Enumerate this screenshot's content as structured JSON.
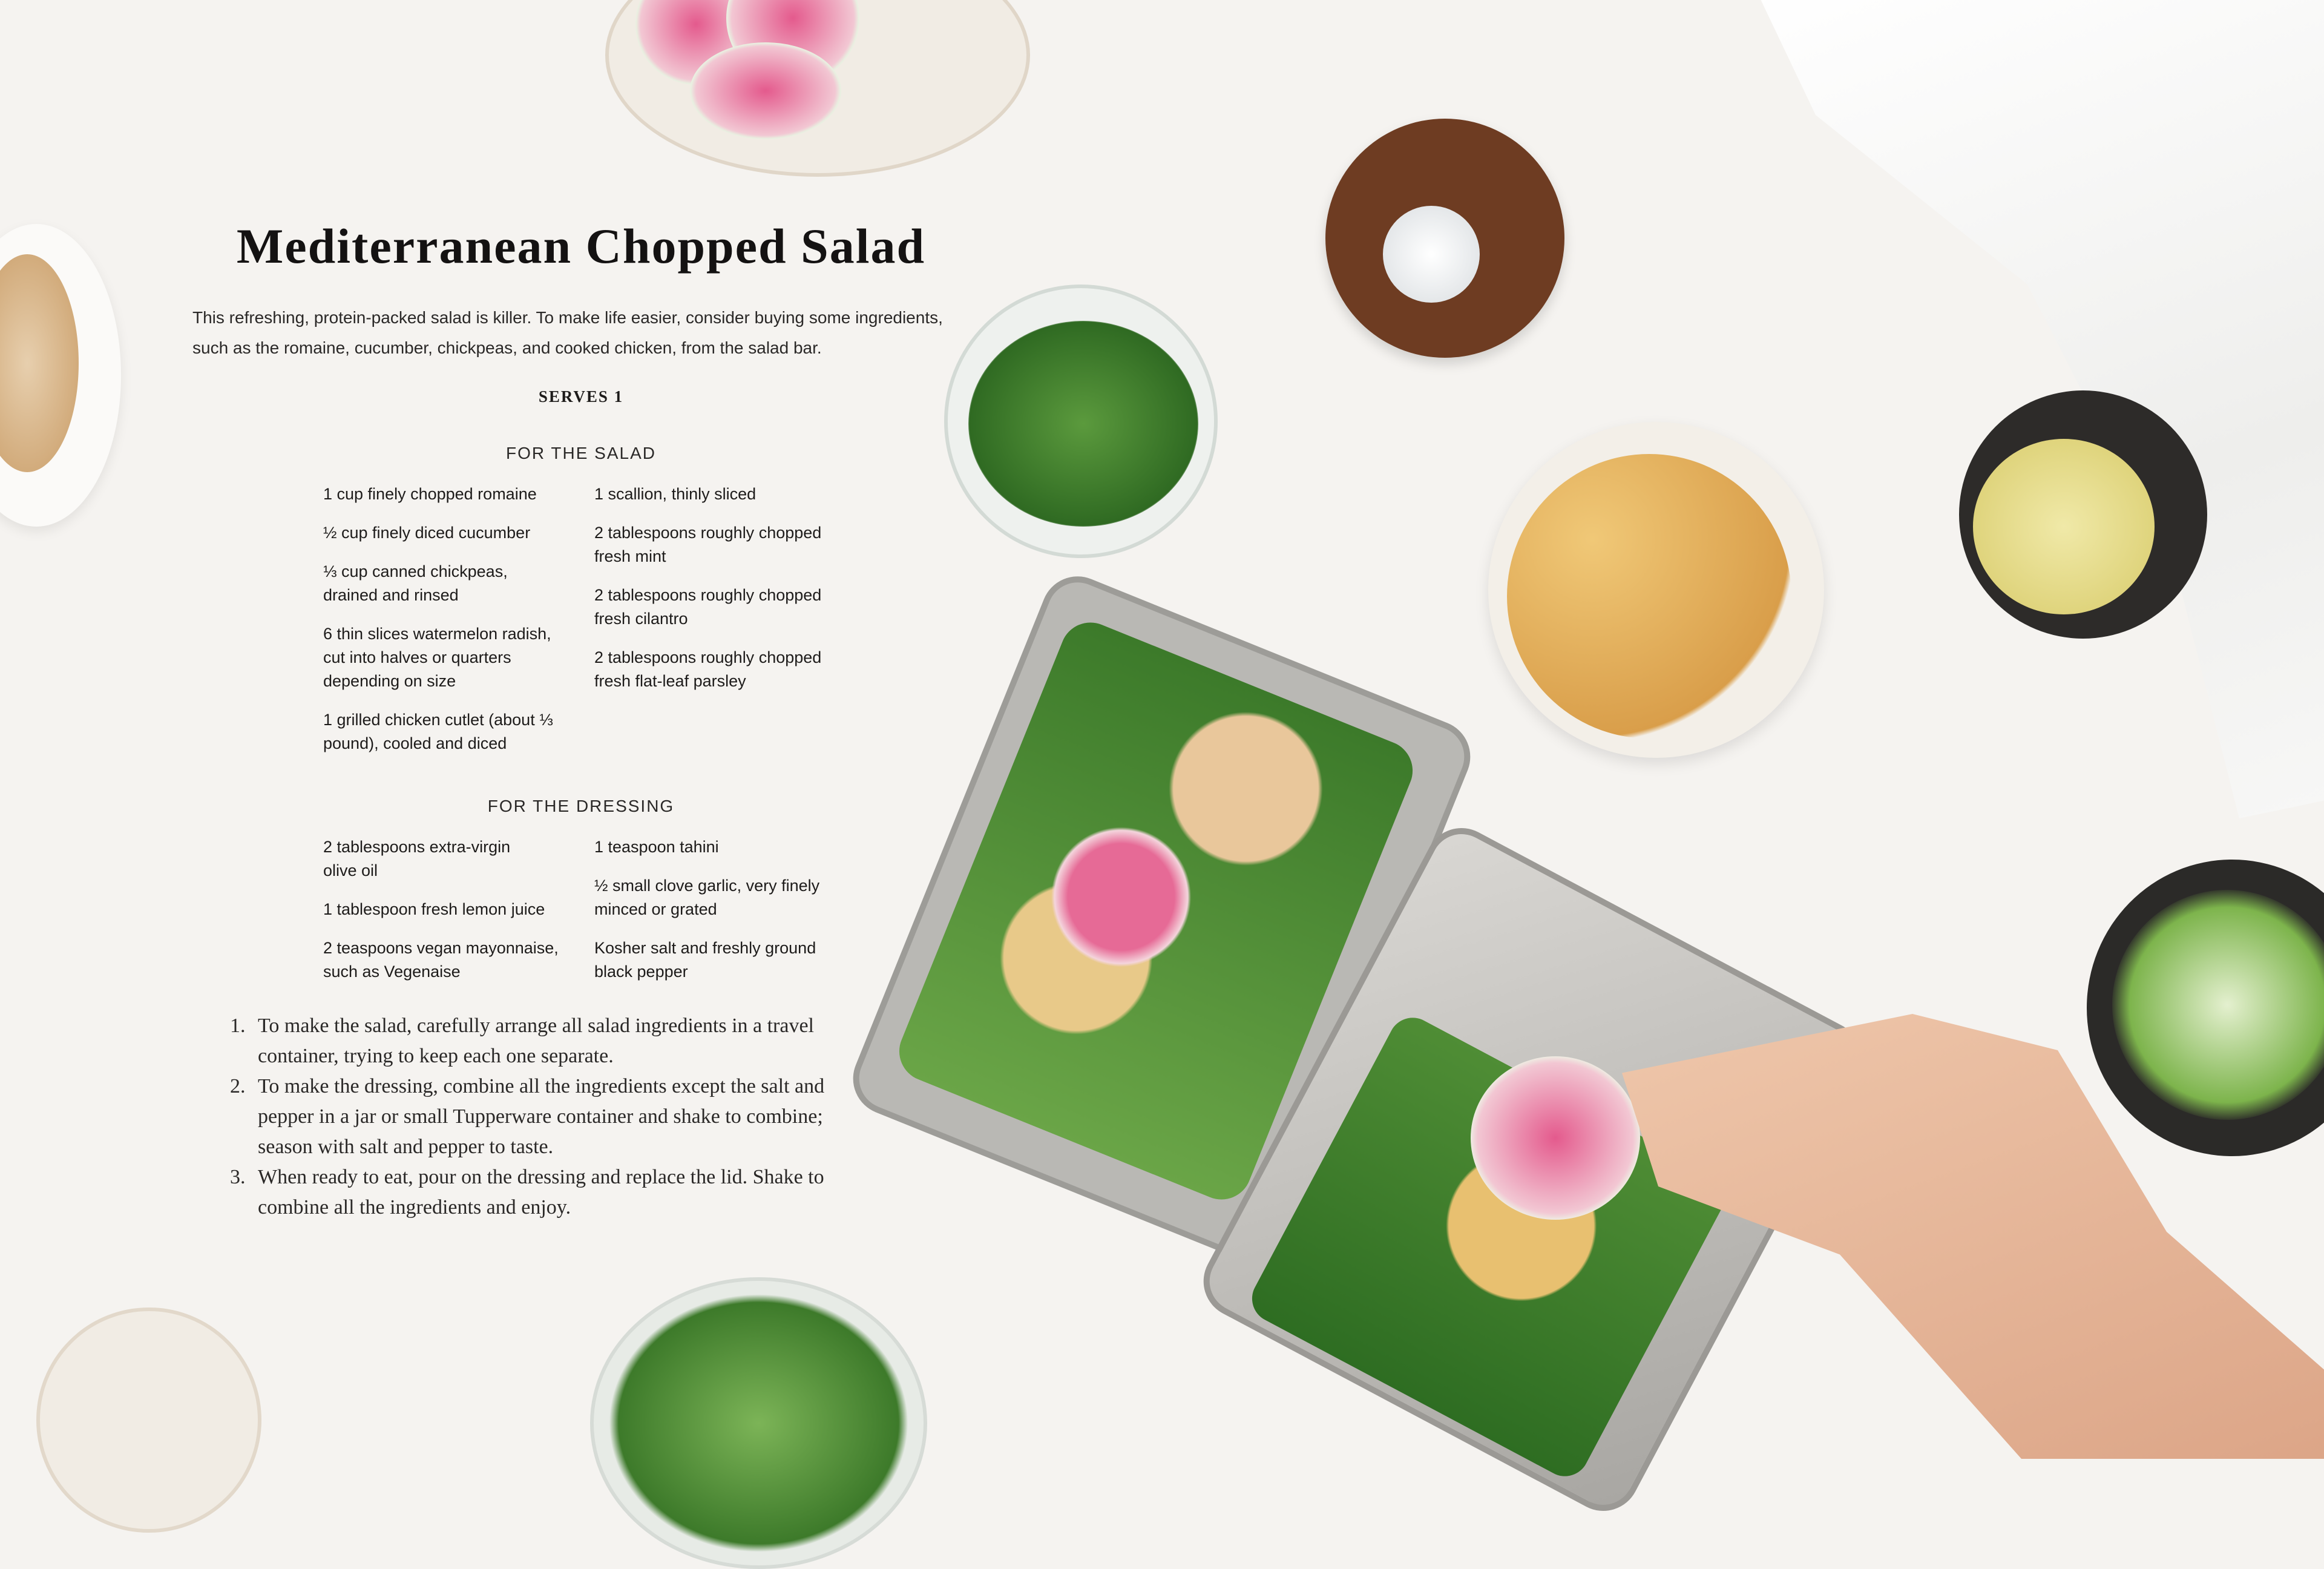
{
  "recipe": {
    "title": "Mediterranean Chopped Salad",
    "intro": "This refreshing, protein-packed salad is killer. To make life easier, consider buying some ingredients, such as the romaine, cucumber, chickpeas, and cooked chicken, from the salad bar.",
    "serves": "SERVES 1",
    "salad": {
      "heading": "FOR THE SALAD",
      "left": [
        "1 cup finely chopped romaine",
        "½ cup finely diced cucumber",
        "⅓ cup canned chickpeas, drained and rinsed",
        "6 thin slices watermelon radish, cut into halves or quarters depending on size",
        "1 grilled chicken cutlet (about ⅓ pound), cooled and diced"
      ],
      "right": [
        "1 scallion, thinly sliced",
        "2 tablespoons roughly chopped fresh mint",
        "2 tablespoons roughly chopped fresh cilantro",
        "2 tablespoons roughly chopped fresh flat-leaf parsley"
      ]
    },
    "dressing": {
      "heading": "FOR THE DRESSING",
      "left": [
        "2 tablespoons extra-virgin olive oil",
        "1 tablespoon fresh lemon juice",
        "2 teaspoons vegan mayonnaise, such as Vegenaise"
      ],
      "right": [
        "1 teaspoon tahini",
        "½ small clove garlic, very finely minced or grated",
        "Kosher salt and freshly ground black pepper"
      ]
    },
    "steps": [
      {
        "num": "1.",
        "text": "To make the salad, carefully arrange all salad ingredients in a travel container, trying to keep each one separate."
      },
      {
        "num": "2.",
        "text": "To make the dressing, combine all the ingredients except the salt and pepper in a jar or small Tupperware container and shake to combine; season with salt and pepper to taste."
      },
      {
        "num": "3.",
        "text": "When ready to eat, pour on the dressing and replace the lid. Shake to combine all the ingredients and enjoy."
      }
    ]
  },
  "colors": {
    "background": "#f5f3f0",
    "text": "#1d1b1a",
    "radish": "#e27aa0",
    "chickpea": "#e0ad5c",
    "herb": "#3f7a2c"
  }
}
